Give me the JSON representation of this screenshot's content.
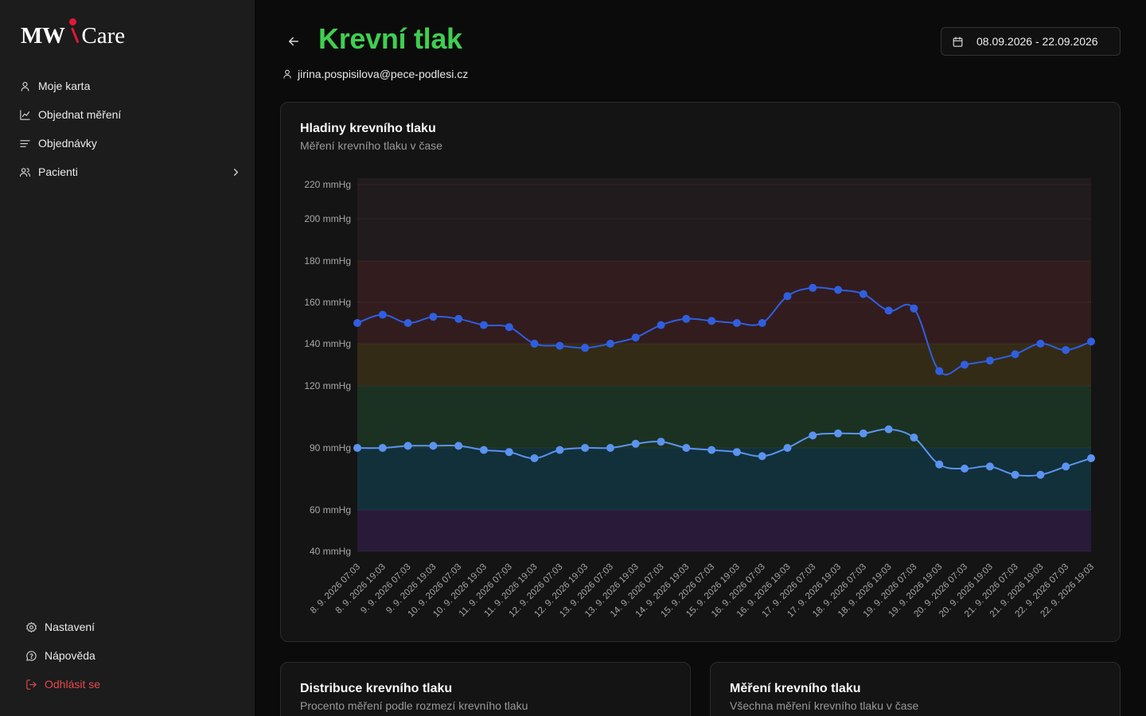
{
  "app": {
    "logo_mw": "MW",
    "logo_care": "Care"
  },
  "sidebar": {
    "items": [
      {
        "label": "Moje karta",
        "icon": "user-icon"
      },
      {
        "label": "Objednat měření",
        "icon": "chart-line-icon"
      },
      {
        "label": "Objednávky",
        "icon": "list-icon"
      },
      {
        "label": "Pacienti",
        "icon": "users-icon"
      }
    ],
    "bottom": [
      {
        "label": "Nastavení",
        "icon": "gear-icon"
      },
      {
        "label": "Nápověda",
        "icon": "help-bubble-icon"
      },
      {
        "label": "Odhlásit se",
        "icon": "logout-icon"
      }
    ]
  },
  "header": {
    "title": "Krevní tlak",
    "user_email": "jirina.pospisilova@pece-podlesi.cz",
    "date_range": "08.09.2026 - 22.09.2026"
  },
  "colors": {
    "title": "#3fcf4f",
    "systolic": "#2f5fe0",
    "diastolic": "#5b93f0",
    "logout": "#e5484d",
    "brand_red": "#e3173a"
  },
  "cards": {
    "main": {
      "title": "Hladiny krevního tlaku",
      "subtitle": "Měření krevního tlaku v čase"
    },
    "distribution": {
      "title": "Distribuce krevního tlaku",
      "subtitle": "Procento měření podle rozmezí krevního tlaku"
    },
    "measurements": {
      "title": "Měření krevního tlaku",
      "subtitle": "Všechna měření krevního tlaku v čase"
    }
  },
  "chart_data": {
    "type": "line",
    "title": "Hladiny krevního tlaku",
    "subtitle": "Měření krevního tlaku v čase",
    "y_unit": "mmHg",
    "y_ticks": [
      40,
      60,
      90,
      120,
      140,
      160,
      180,
      200,
      220
    ],
    "y_tick_labels": [
      "40 mmHg",
      "60 mmHg",
      "90 mmHg",
      "120 mmHg",
      "140 mmHg",
      "160 mmHg",
      "180 mmHg",
      "200 mmHg",
      "220 mmHg"
    ],
    "ylim": [
      40,
      220
    ],
    "grid": true,
    "bands": [
      {
        "from": 40,
        "to": 60,
        "color": "#2a1a3a"
      },
      {
        "from": 60,
        "to": 90,
        "color": "#12303a"
      },
      {
        "from": 90,
        "to": 120,
        "color": "#1b3222"
      },
      {
        "from": 120,
        "to": 140,
        "color": "#342b17"
      },
      {
        "from": 140,
        "to": 180,
        "color": "#331c1e"
      },
      {
        "from": 180,
        "to": 220,
        "color": "#221b1d"
      }
    ],
    "categories": [
      "8. 9. 2026 07:03",
      "8. 9. 2026 19:03",
      "9. 9. 2026 07:03",
      "9. 9. 2026 19:03",
      "10. 9. 2026 07:03",
      "10. 9. 2026 19:03",
      "11. 9. 2026 07:03",
      "11. 9. 2026 19:03",
      "12. 9. 2026 07:03",
      "12. 9. 2026 19:03",
      "13. 9. 2026 07:03",
      "13. 9. 2026 19:03",
      "14. 9. 2026 07:03",
      "14. 9. 2026 19:03",
      "15. 9. 2026 07:03",
      "15. 9. 2026 19:03",
      "16. 9. 2026 07:03",
      "16. 9. 2026 19:03",
      "17. 9. 2026 07:03",
      "17. 9. 2026 19:03",
      "18. 9. 2026 07:03",
      "18. 9. 2026 19:03",
      "19. 9. 2026 07:03",
      "19. 9. 2026 19:03",
      "20. 9. 2026 07:03",
      "20. 9. 2026 19:03",
      "21. 9. 2026 07:03",
      "21. 9. 2026 19:03",
      "22. 9. 2026 07:03",
      "22. 9. 2026 19:03"
    ],
    "series": [
      {
        "values": [
          150,
          154,
          150,
          153,
          152,
          149,
          148,
          140,
          139,
          138,
          140,
          143,
          149,
          152,
          151,
          150,
          150,
          163,
          167,
          166,
          164,
          156,
          157,
          127,
          130,
          132,
          135,
          140,
          137,
          141
        ]
      },
      {
        "values": [
          90,
          90,
          91,
          91,
          91,
          89,
          88,
          85,
          89,
          90,
          90,
          92,
          93,
          90,
          89,
          88,
          86,
          90,
          96,
          97,
          97,
          99,
          95,
          82,
          80,
          81,
          77,
          77,
          81,
          85
        ]
      }
    ]
  }
}
